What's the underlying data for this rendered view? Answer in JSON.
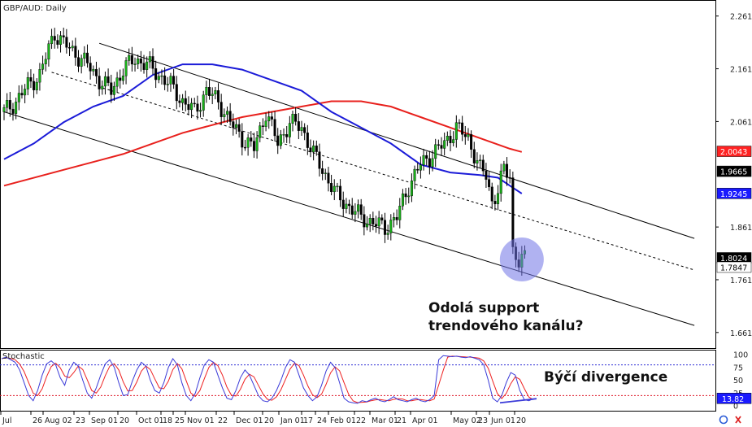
{
  "chart_data": [
    {
      "type": "candlestick",
      "title": "GBP/AUD: Daily",
      "price_axis": {
        "ylim": [
          1.632,
          2.292
        ],
        "ticks": [
          "2.2616",
          "2.1616",
          "2.0616",
          "1.8616",
          "1.7616",
          "1.6616"
        ]
      },
      "price_labels": [
        {
          "text": "2.0043",
          "value": 2.0043,
          "bg": "#ff2222",
          "fg": "#ffffff"
        },
        {
          "text": "1.9665",
          "value": 1.9665,
          "bg": "#000000",
          "fg": "#ffffff"
        },
        {
          "text": "1.9245",
          "value": 1.9245,
          "bg": "#1a1aff",
          "fg": "#ffffff"
        },
        {
          "text": "1.8024",
          "value": 1.8024,
          "bg": "#000000",
          "fg": "#ffffff"
        },
        {
          "text": "1.7847",
          "value": 1.7847,
          "bg": "#ffffff",
          "fg": "#000000"
        }
      ],
      "x_ticks": [
        "Jul",
        "26",
        "Aug 02",
        "23",
        "Sep 01",
        "20",
        "Oct 01",
        "18",
        "25",
        "Nov 01",
        "22",
        "Dec 01",
        "20",
        "Jan 01",
        "17",
        "24",
        "Feb 01",
        "22",
        "Mar 01",
        "21",
        "Apr 01",
        "May 02",
        "23",
        "Jun 01",
        "20"
      ],
      "close_path": [
        [
          0,
          2.08
        ],
        [
          4,
          2.1
        ],
        [
          8,
          2.13
        ],
        [
          12,
          2.15
        ],
        [
          15,
          2.2
        ],
        [
          17,
          2.23
        ],
        [
          20,
          2.21
        ],
        [
          24,
          2.19
        ],
        [
          28,
          2.17
        ],
        [
          32,
          2.14
        ],
        [
          36,
          2.12
        ],
        [
          40,
          2.16
        ],
        [
          44,
          2.18
        ],
        [
          48,
          2.17
        ],
        [
          52,
          2.15
        ],
        [
          56,
          2.13
        ],
        [
          60,
          2.1
        ],
        [
          64,
          2.08
        ],
        [
          68,
          2.12
        ],
        [
          72,
          2.1
        ],
        [
          76,
          2.06
        ],
        [
          80,
          2.03
        ],
        [
          84,
          2.01
        ],
        [
          88,
          2.08
        ],
        [
          92,
          2.02
        ],
        [
          96,
          2.06
        ],
        [
          100,
          2.05
        ],
        [
          104,
          2.0
        ],
        [
          108,
          1.96
        ],
        [
          112,
          1.92
        ],
        [
          116,
          1.9
        ],
        [
          120,
          1.88
        ],
        [
          124,
          1.87
        ],
        [
          128,
          1.86
        ],
        [
          132,
          1.88
        ],
        [
          136,
          1.94
        ],
        [
          140,
          1.98
        ],
        [
          144,
          2.0
        ],
        [
          148,
          2.02
        ],
        [
          152,
          2.05
        ],
        [
          156,
          2.03
        ],
        [
          160,
          1.97
        ],
        [
          162,
          1.96
        ],
        [
          164,
          1.91
        ],
        [
          166,
          1.93
        ],
        [
          168,
          1.97
        ],
        [
          170,
          1.96
        ],
        [
          171,
          1.82
        ],
        [
          173,
          1.795
        ],
        [
          175,
          1.8
        ]
      ],
      "ma_blue": [
        [
          0,
          1.99
        ],
        [
          10,
          2.02
        ],
        [
          20,
          2.06
        ],
        [
          30,
          2.09
        ],
        [
          40,
          2.11
        ],
        [
          50,
          2.15
        ],
        [
          60,
          2.17
        ],
        [
          70,
          2.17
        ],
        [
          80,
          2.16
        ],
        [
          90,
          2.14
        ],
        [
          100,
          2.12
        ],
        [
          110,
          2.08
        ],
        [
          120,
          2.05
        ],
        [
          130,
          2.02
        ],
        [
          140,
          1.98
        ],
        [
          150,
          1.965
        ],
        [
          160,
          1.96
        ],
        [
          166,
          1.955
        ],
        [
          170,
          1.94
        ],
        [
          174,
          1.925
        ]
      ],
      "ma_red": [
        [
          0,
          1.94
        ],
        [
          20,
          1.97
        ],
        [
          40,
          2.0
        ],
        [
          60,
          2.04
        ],
        [
          80,
          2.07
        ],
        [
          100,
          2.09
        ],
        [
          110,
          2.1
        ],
        [
          120,
          2.1
        ],
        [
          130,
          2.09
        ],
        [
          140,
          2.07
        ],
        [
          150,
          2.05
        ],
        [
          160,
          2.03
        ],
        [
          170,
          2.01
        ],
        [
          174,
          2.004
        ]
      ],
      "channel_upper": [
        [
          32,
          2.21
        ],
        [
          232,
          1.84
        ]
      ],
      "channel_middle": [
        [
          16,
          2.155
        ],
        [
          232,
          1.78
        ]
      ],
      "channel_lower": [
        [
          0,
          2.08
        ],
        [
          232,
          1.675
        ]
      ],
      "annotation": [
        "Odolá support",
        "trendového kanálu?"
      ],
      "xlabel": "",
      "ylabel": ""
    },
    {
      "type": "line",
      "title": "Stochastic",
      "ylim": [
        0,
        100
      ],
      "y_ticks": [
        "100",
        "75",
        "50",
        "25",
        "0"
      ],
      "current_value_label": "13.82",
      "levels": [
        80,
        20
      ],
      "k_values": [
        92,
        95,
        90,
        85,
        70,
        45,
        20,
        10,
        30,
        60,
        82,
        88,
        80,
        55,
        40,
        70,
        85,
        78,
        50,
        25,
        15,
        35,
        60,
        82,
        90,
        75,
        45,
        20,
        22,
        48,
        70,
        85,
        78,
        50,
        30,
        25,
        45,
        75,
        92,
        80,
        45,
        20,
        10,
        25,
        55,
        80,
        90,
        85,
        60,
        35,
        15,
        12,
        30,
        55,
        70,
        60,
        40,
        20,
        10,
        8,
        15,
        30,
        50,
        75,
        90,
        85,
        60,
        35,
        20,
        10,
        18,
        40,
        68,
        85,
        75,
        45,
        15,
        8,
        6,
        5,
        10,
        8,
        12,
        15,
        10,
        8,
        12,
        18,
        12,
        10,
        8,
        12,
        15,
        10,
        8,
        12,
        20,
        90,
        98,
        97,
        96,
        97,
        95,
        94,
        96,
        93,
        90,
        80,
        50,
        15,
        8,
        20,
        45,
        65,
        60,
        30,
        12,
        10,
        13.82
      ],
      "annotation": "Býčí divergence"
    }
  ]
}
